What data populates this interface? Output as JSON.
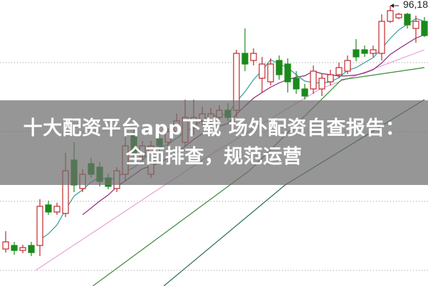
{
  "banner": {
    "title": "十大配资平台app下载 场外配资自查报告：全面排查，规范运营"
  },
  "chart_data": {
    "type": "candlestick",
    "ylim": [
      56.78,
      96.98
    ],
    "grid": "dotted horizontal",
    "annotations": [
      {
        "text": "96,18",
        "at_candle": 45,
        "price": 96.18
      }
    ],
    "colors": {
      "up": "#c0282d",
      "down": "#1a8a1a",
      "ma5": "#3a9a9a",
      "ma10": "#8a2a7a",
      "pink": "#e8a0d8",
      "olive": "#3a8a3a",
      "teal": "#2a6a5a"
    },
    "candles": [
      [
        61.98,
        64.48,
        61.48,
        62.98
      ],
      [
        62.48,
        62.98,
        61.18,
        61.78
      ],
      [
        61.78,
        62.58,
        61.38,
        62.18
      ],
      [
        62.48,
        62.98,
        60.98,
        61.48
      ],
      [
        62.48,
        68.98,
        60.98,
        67.98
      ],
      [
        68.18,
        68.78,
        66.78,
        67.18
      ],
      [
        67.18,
        68.48,
        66.78,
        67.98
      ],
      [
        66.98,
        75.48,
        66.48,
        72.98
      ],
      [
        74.48,
        76.98,
        69.98,
        70.98
      ],
      [
        70.48,
        73.18,
        69.98,
        72.48
      ],
      [
        73.98,
        74.78,
        71.98,
        72.48
      ],
      [
        73.48,
        74.18,
        70.78,
        71.48
      ],
      [
        71.98,
        72.58,
        70.38,
        70.78
      ],
      [
        70.48,
        73.48,
        69.98,
        72.98
      ],
      [
        72.48,
        79.48,
        71.48,
        76.48
      ],
      [
        77.98,
        78.98,
        74.78,
        75.48
      ],
      [
        74.98,
        77.18,
        74.38,
        76.48
      ],
      [
        72.48,
        77.18,
        71.98,
        76.48
      ],
      [
        77.48,
        78.48,
        75.78,
        76.48
      ],
      [
        76.98,
        78.98,
        76.38,
        78.48
      ],
      [
        78.48,
        80.98,
        77.98,
        79.98
      ],
      [
        76.98,
        82.98,
        76.48,
        80.48
      ],
      [
        78.98,
        82.98,
        77.98,
        80.48
      ],
      [
        79.98,
        81.98,
        79.38,
        80.98
      ],
      [
        79.98,
        81.78,
        79.48,
        80.98
      ],
      [
        80.48,
        82.18,
        79.98,
        81.48
      ],
      [
        81.48,
        82.48,
        79.98,
        80.48
      ],
      [
        81.48,
        89.98,
        80.48,
        89.48
      ],
      [
        89.48,
        92.98,
        86.98,
        87.98
      ],
      [
        88.48,
        90.18,
        87.78,
        89.48
      ],
      [
        85.98,
        88.98,
        83.98,
        87.98
      ],
      [
        85.48,
        88.78,
        84.98,
        87.98
      ],
      [
        88.48,
        89.18,
        85.78,
        86.48
      ],
      [
        87.98,
        88.78,
        83.98,
        85.48
      ],
      [
        85.98,
        86.98,
        83.78,
        84.48
      ],
      [
        84.48,
        85.18,
        82.98,
        83.48
      ],
      [
        84.48,
        87.78,
        83.78,
        86.98
      ],
      [
        84.48,
        86.58,
        83.48,
        85.98
      ],
      [
        85.48,
        87.18,
        84.98,
        86.48
      ],
      [
        86.48,
        88.18,
        85.98,
        87.48
      ],
      [
        86.98,
        89.18,
        86.58,
        88.48
      ],
      [
        89.98,
        91.48,
        88.38,
        88.98
      ],
      [
        89.98,
        90.58,
        88.98,
        89.48
      ],
      [
        89.48,
        90.58,
        88.98,
        89.98
      ],
      [
        89.48,
        94.98,
        88.48,
        93.98
      ],
      [
        93.98,
        96.18,
        93.78,
        95.48
      ],
      [
        94.48,
        95.18,
        94.28,
        94.98
      ],
      [
        94.98,
        95.18,
        92.98,
        93.48
      ],
      [
        92.98,
        94.78,
        90.98,
        93.98
      ],
      [
        93.98,
        94.58,
        91.78,
        91.98
      ]
    ],
    "long_lines": [
      {
        "key": "pink",
        "points": [
          [
            3.5,
            58.98
          ],
          [
            24.3,
            75.48
          ],
          [
            36.8,
            84.48
          ],
          [
            49,
            89.98
          ]
        ]
      },
      {
        "key": "olive",
        "points": [
          [
            10.2,
            56.78
          ],
          [
            28.5,
            72.98
          ],
          [
            39.3,
            85.78
          ],
          [
            49,
            87.48
          ]
        ]
      },
      {
        "key": "teal",
        "points": [
          [
            18.5,
            56.78
          ],
          [
            32.7,
            70.98
          ],
          [
            49,
            82.98
          ]
        ]
      }
    ]
  }
}
